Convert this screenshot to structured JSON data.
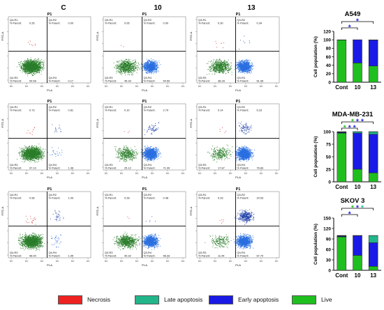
{
  "column_labels": [
    "C",
    "10",
    "13"
  ],
  "legend": [
    {
      "label": "Necrosis",
      "color": "#ef2222"
    },
    {
      "label": "Late apoptosis",
      "color": "#22b58a"
    },
    {
      "label": "Early apoptosis",
      "color": "#1a1ae6"
    },
    {
      "label": "Live",
      "color": "#1fbf1f"
    }
  ],
  "colors": {
    "live_dots": "#2a7d2a",
    "early_dots": "#2a6fe0",
    "late_dots": "#2140a8",
    "necrosis_dots": "#d23030"
  },
  "flow_plots": [
    {
      "cell_line": "A549",
      "dose": "C",
      "panel_title": "P1",
      "x_axis": "PI-A",
      "y_axis": "FITC-A",
      "gates": {
        "Q4-R1": "0.26",
        "Q4-R2": "0.00",
        "Q4-R3": "99.58",
        "Q4-R4": "0.17"
      },
      "parent_label": "% Parent:"
    },
    {
      "cell_line": "A549",
      "dose": "10",
      "panel_title": "P1",
      "x_axis": "PI-A",
      "y_axis": "FITC-A",
      "gates": {
        "Q3-R1": "0.05",
        "Q3-R2": "0.00",
        "Q3-R3": "45.39",
        "Q3-R4": "54.59"
      },
      "parent_label": "% Parent:"
    },
    {
      "cell_line": "A549",
      "dose": "13",
      "panel_title": "P1",
      "x_axis": "PI-A",
      "y_axis": "FITC-A",
      "gates": {
        "Q3-R1": "0.30",
        "Q3-R2": "0.34",
        "Q3-R3": "38.28",
        "Q3-R4": "61.08"
      },
      "parent_label": "% Parent:"
    },
    {
      "cell_line": "MDA-MB-231",
      "dose": "C",
      "panel_title": "P1",
      "x_axis": "PI-A",
      "y_axis": "FITC-A",
      "gates": {
        "Q4-R1": "0.73",
        "Q4-R2": "0.81",
        "Q4-R3": "97.10",
        "Q4-R4": "1.36"
      },
      "parent_label": "% Parent:"
    },
    {
      "cell_line": "MDA-MB-231",
      "dose": "10",
      "panel_title": "P1",
      "x_axis": "PI-A",
      "y_axis": "FITC-A",
      "gates": {
        "Q3-R1": "0.10",
        "Q3-R2": "2.79",
        "Q3-R3": "25.12",
        "Q3-R4": "71.99"
      },
      "parent_label": "% Parent:"
    },
    {
      "cell_line": "MDA-MB-231",
      "dose": "13",
      "panel_title": "P1",
      "x_axis": "PI-A",
      "y_axis": "FITC-A",
      "gates": {
        "Q3-R1": "0.14",
        "Q3-R2": "5.16",
        "Q3-R3": "17.87",
        "Q3-R4": "76.83"
      },
      "parent_label": "% Parent:"
    },
    {
      "cell_line": "SKOV 3",
      "dose": "C",
      "panel_title": "P1",
      "x_axis": "PI-A",
      "y_axis": "FITC-A",
      "gates": {
        "Q4-R1": "0.96",
        "Q4-R2": "1.09",
        "Q4-R3": "96.00",
        "Q4-R4": "1.95"
      },
      "parent_label": "% Parent:"
    },
    {
      "cell_line": "SKOV 3",
      "dose": "10",
      "panel_title": "P1",
      "x_axis": "PI-A",
      "y_axis": "FITC-A",
      "gates": {
        "Q3-R1": "0.28",
        "Q3-R2": "0.48",
        "Q3-R3": "42.92",
        "Q3-R4": "56.33"
      },
      "parent_label": "% Parent:"
    },
    {
      "cell_line": "SKOV 3",
      "dose": "13",
      "panel_title": "P1",
      "x_axis": "PI-A",
      "y_axis": "FITC-A",
      "gates": {
        "Q3-R1": "0.33",
        "Q3-R2": "20.53",
        "Q3-R3": "11.44",
        "Q3-R4": "67.70"
      },
      "parent_label": "% Parent:"
    }
  ],
  "chart_data": [
    {
      "type": "bar",
      "stacked": true,
      "title": "A549",
      "ylabel": "Cell population (%)",
      "categories": [
        "Cont",
        "10",
        "13"
      ],
      "ylim": [
        0,
        120
      ],
      "yticks": [
        0,
        20,
        40,
        60,
        80,
        100,
        120
      ],
      "significance": [
        {
          "from": "Cont",
          "to": "10",
          "mark": "*",
          "color": "#1a1ae6"
        },
        {
          "from": "Cont",
          "to": "13",
          "mark": "*",
          "color": "#1a1ae6"
        }
      ],
      "series": [
        {
          "name": "Live",
          "color": "#1fbf1f",
          "values": [
            99.6,
            45.4,
            38.3
          ]
        },
        {
          "name": "Early apoptosis",
          "color": "#1a1ae6",
          "values": [
            0.2,
            54.6,
            61.1
          ]
        },
        {
          "name": "Late apoptosis",
          "color": "#22b58a",
          "values": [
            0.0,
            0.0,
            0.3
          ]
        },
        {
          "name": "Necrosis",
          "color": "#ef2222",
          "values": [
            0.3,
            0.1,
            0.3
          ]
        }
      ]
    },
    {
      "type": "bar",
      "stacked": true,
      "title": "MDA-MB-231",
      "ylabel": "Cell population (%)",
      "categories": [
        "Cont",
        "10",
        "13"
      ],
      "ylim": [
        0,
        100
      ],
      "yticks": [
        0,
        25,
        50,
        75,
        100
      ],
      "significance": [
        {
          "from": "Cont",
          "to": "10",
          "mark": "***",
          "color": "#1fbf1f,#1a1ae6,#1a1ae6"
        },
        {
          "from": "Cont",
          "to": "13",
          "mark": "***",
          "color": "#1fbf1f,#1a1ae6,#1a1ae6"
        }
      ],
      "series": [
        {
          "name": "Live",
          "color": "#1fbf1f",
          "values": [
            97.1,
            25.1,
            17.9
          ]
        },
        {
          "name": "Early apoptosis",
          "color": "#1a1ae6",
          "values": [
            1.4,
            72.0,
            76.8
          ]
        },
        {
          "name": "Late apoptosis",
          "color": "#22b58a",
          "values": [
            0.8,
            2.8,
            5.2
          ]
        },
        {
          "name": "Necrosis",
          "color": "#ef2222",
          "values": [
            0.7,
            0.1,
            0.1
          ]
        }
      ]
    },
    {
      "type": "bar",
      "stacked": true,
      "title": "SKOV 3",
      "ylabel": "Cell population (%)",
      "categories": [
        "Cont",
        "10",
        "13"
      ],
      "ylim": [
        0,
        150
      ],
      "yticks": [
        0,
        30,
        60,
        90,
        120,
        150
      ],
      "significance": [
        {
          "from": "Cont",
          "to": "10",
          "mark": "*",
          "color": "#1a1ae6"
        },
        {
          "from": "Cont",
          "to": "13",
          "mark": "***",
          "color": "#1fbf1f,#1a1ae6,#22b5a0"
        }
      ],
      "series": [
        {
          "name": "Live",
          "color": "#1fbf1f",
          "values": [
            96.0,
            42.9,
            11.4
          ]
        },
        {
          "name": "Early apoptosis",
          "color": "#1a1ae6",
          "values": [
            2.0,
            56.3,
            67.7
          ]
        },
        {
          "name": "Late apoptosis",
          "color": "#22b58a",
          "values": [
            1.1,
            0.5,
            20.5
          ]
        },
        {
          "name": "Necrosis",
          "color": "#ef2222",
          "values": [
            1.0,
            0.3,
            0.3
          ]
        }
      ]
    }
  ]
}
